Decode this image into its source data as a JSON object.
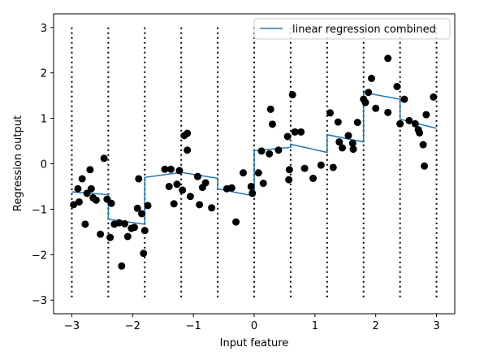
{
  "chart_data": {
    "type": "scatter",
    "xlabel": "Input feature",
    "ylabel": "Regression output",
    "xlim": [
      -3.3,
      3.3
    ],
    "ylim": [
      -3.3,
      3.3
    ],
    "xticks": [
      -3,
      -2,
      -1,
      0,
      1,
      2,
      3
    ],
    "yticks": [
      -3,
      -2,
      -1,
      0,
      1,
      2,
      3
    ],
    "legend": {
      "placement": "top-right",
      "entries": [
        "linear regression combined"
      ]
    },
    "bin_boundaries": [
      -3.0,
      -2.4,
      -1.8,
      -1.2,
      -0.6,
      0.0,
      0.6,
      1.2,
      1.8,
      2.4,
      3.0
    ],
    "colors": {
      "line": "#1f77b4",
      "points": "#000000",
      "boundaries": "#000000"
    },
    "series": [
      {
        "name": "linear regression combined",
        "kind": "line",
        "segments": [
          {
            "x": [
              -3.0,
              -2.4
            ],
            "y": [
              -0.62,
              -0.68
            ]
          },
          {
            "x": [
              -2.4,
              -1.8
            ],
            "y": [
              -1.22,
              -1.33
            ]
          },
          {
            "x": [
              -1.8,
              -1.2
            ],
            "y": [
              -0.3,
              -0.19
            ]
          },
          {
            "x": [
              -1.2,
              -0.6
            ],
            "y": [
              -0.19,
              -0.32
            ]
          },
          {
            "x": [
              -0.6,
              0.0
            ],
            "y": [
              -0.55,
              -0.71
            ]
          },
          {
            "x": [
              0.0,
              0.6
            ],
            "y": [
              0.29,
              0.36
            ]
          },
          {
            "x": [
              0.6,
              1.2
            ],
            "y": [
              0.43,
              0.25
            ]
          },
          {
            "x": [
              1.2,
              1.8
            ],
            "y": [
              0.64,
              0.48
            ]
          },
          {
            "x": [
              1.8,
              2.4
            ],
            "y": [
              1.57,
              1.42
            ]
          },
          {
            "x": [
              2.4,
              3.0
            ],
            "y": [
              0.98,
              0.78
            ]
          }
        ]
      },
      {
        "name": "",
        "kind": "points",
        "points": [
          [
            -2.97,
            -0.9
          ],
          [
            -2.9,
            -0.55
          ],
          [
            -2.88,
            -0.84
          ],
          [
            -2.83,
            -0.33
          ],
          [
            -2.78,
            -1.33
          ],
          [
            -2.75,
            -0.65
          ],
          [
            -2.7,
            -0.13
          ],
          [
            -2.68,
            -0.55
          ],
          [
            -2.65,
            -0.75
          ],
          [
            -2.6,
            -0.8
          ],
          [
            -2.53,
            -1.55
          ],
          [
            -2.47,
            0.12
          ],
          [
            -2.42,
            -0.78
          ],
          [
            -2.37,
            -1.62
          ],
          [
            -2.35,
            -0.87
          ],
          [
            -2.3,
            -1.33
          ],
          [
            -2.22,
            -1.3
          ],
          [
            -2.18,
            -2.25
          ],
          [
            -2.13,
            -1.32
          ],
          [
            -2.08,
            -1.6
          ],
          [
            -2.02,
            -1.42
          ],
          [
            -1.97,
            -1.4
          ],
          [
            -1.92,
            -0.98
          ],
          [
            -1.9,
            -0.33
          ],
          [
            -1.85,
            -1.1
          ],
          [
            -1.82,
            -1.97
          ],
          [
            -1.8,
            -1.47
          ],
          [
            -1.75,
            -0.92
          ],
          [
            -1.47,
            -0.12
          ],
          [
            -1.4,
            -0.5
          ],
          [
            -1.37,
            -0.12
          ],
          [
            -1.32,
            -0.88
          ],
          [
            -1.27,
            -0.45
          ],
          [
            -1.23,
            -0.15
          ],
          [
            -1.18,
            -0.58
          ],
          [
            -1.15,
            0.62
          ],
          [
            -1.1,
            0.67
          ],
          [
            -1.1,
            0.3
          ],
          [
            -1.05,
            -0.72
          ],
          [
            -0.93,
            -0.28
          ],
          [
            -0.9,
            -0.9
          ],
          [
            -0.85,
            -0.52
          ],
          [
            -0.8,
            -0.42
          ],
          [
            -0.7,
            -0.97
          ],
          [
            -0.45,
            -0.55
          ],
          [
            -0.37,
            -0.53
          ],
          [
            -0.3,
            -1.28
          ],
          [
            -0.18,
            -0.2
          ],
          [
            -0.05,
            -0.5
          ],
          [
            -0.03,
            -0.65
          ],
          [
            0.07,
            -0.2
          ],
          [
            0.12,
            0.28
          ],
          [
            0.15,
            -0.43
          ],
          [
            0.25,
            0.22
          ],
          [
            0.27,
            1.2
          ],
          [
            0.3,
            0.87
          ],
          [
            0.4,
            0.3
          ],
          [
            0.55,
            0.6
          ],
          [
            0.57,
            -0.35
          ],
          [
            0.58,
            -0.13
          ],
          [
            0.63,
            1.52
          ],
          [
            0.67,
            0.7
          ],
          [
            0.77,
            0.7
          ],
          [
            0.83,
            -0.1
          ],
          [
            0.97,
            -0.32
          ],
          [
            1.1,
            -0.03
          ],
          [
            1.25,
            1.12
          ],
          [
            1.3,
            -0.08
          ],
          [
            1.38,
            0.92
          ],
          [
            1.4,
            0.48
          ],
          [
            1.45,
            0.35
          ],
          [
            1.55,
            0.62
          ],
          [
            1.62,
            0.45
          ],
          [
            1.63,
            0.32
          ],
          [
            1.7,
            0.91
          ],
          [
            1.8,
            1.42
          ],
          [
            1.83,
            1.35
          ],
          [
            1.88,
            1.57
          ],
          [
            1.93,
            1.88
          ],
          [
            2.0,
            1.22
          ],
          [
            2.2,
            2.32
          ],
          [
            2.2,
            1.13
          ],
          [
            2.35,
            1.7
          ],
          [
            2.4,
            0.88
          ],
          [
            2.47,
            1.42
          ],
          [
            2.55,
            0.95
          ],
          [
            2.65,
            0.88
          ],
          [
            2.7,
            0.75
          ],
          [
            2.72,
            0.68
          ],
          [
            2.78,
            0.42
          ],
          [
            2.8,
            -0.05
          ],
          [
            2.83,
            1.08
          ],
          [
            2.95,
            1.47
          ]
        ]
      }
    ]
  }
}
